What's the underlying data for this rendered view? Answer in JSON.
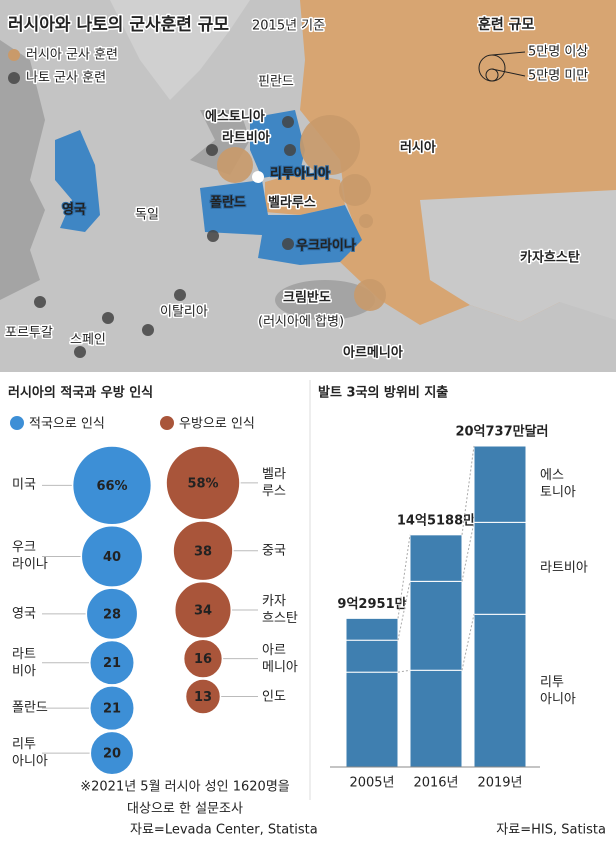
{
  "map": {
    "title": "러시아와 나토의 군사훈련 규모",
    "subtitle": "2015년 기준",
    "legend": [
      "러시아 군사 훈련",
      "나토 군사 훈련"
    ],
    "size_legend": {
      "title": "훈련 규모",
      "items": [
        "5만명 이상",
        "5만명 미만"
      ]
    },
    "labels": [
      "핀란드",
      "에스토니아",
      "라트비아",
      "리투아니아",
      "러시아",
      "영국",
      "독일",
      "폴란드",
      "벨라루스",
      "우크라이나",
      "카자흐스탄",
      "크림반도",
      "(러시아에 합병)",
      "이탈리아",
      "포르투갈",
      "스페인",
      "아르메니아"
    ]
  },
  "chart_data": [
    {
      "type": "bubble",
      "title": "러시아의 적국과 우방 인식",
      "series": [
        {
          "name": "적국으로 인식",
          "color": "#3d8fd6",
          "categories": [
            "미국",
            "우크\n라이나",
            "영국",
            "라트\n비아",
            "폴란드",
            "리투\n아니아"
          ],
          "values": [
            66,
            40,
            28,
            21,
            21,
            20
          ],
          "value_labels": [
            "66%",
            "40",
            "28",
            "21",
            "21",
            "20"
          ]
        },
        {
          "name": "우방으로 인식",
          "color": "#a9553a",
          "categories": [
            "벨라\n루스",
            "중국",
            "카자\n흐스탄",
            "아르\n메니아",
            "인도"
          ],
          "values": [
            58,
            38,
            34,
            16,
            13
          ],
          "value_labels": [
            "58%",
            "38",
            "34",
            "16",
            "13"
          ]
        }
      ],
      "note": [
        "※2021년 5월 러시아 성인 1620명을",
        "대상으로 한 설문조사"
      ],
      "source": "자료=Levada Center, Statista"
    },
    {
      "type": "stacked_bar",
      "title": "발트 3국의 방위비 지출",
      "categories": [
        "2005년",
        "2016년",
        "2019년"
      ],
      "series": [
        {
          "name": "리투\n아니아",
          "color": "#3f7fb0",
          "values": [
            59300,
            60500,
            95500
          ]
        },
        {
          "name": "라트비아",
          "color": "#3f7fb0",
          "values": [
            20000,
            55600,
            57500
          ]
        },
        {
          "name": "에스\n토니아",
          "color": "#3f7fb0",
          "values": [
            13651,
            29088,
            47737
          ]
        }
      ],
      "totals": [
        92951,
        145188,
        200737
      ],
      "total_labels": [
        "9억2951만",
        "14억5188만",
        "20억737만달러"
      ],
      "source": "자료=HIS, Satista"
    }
  ]
}
